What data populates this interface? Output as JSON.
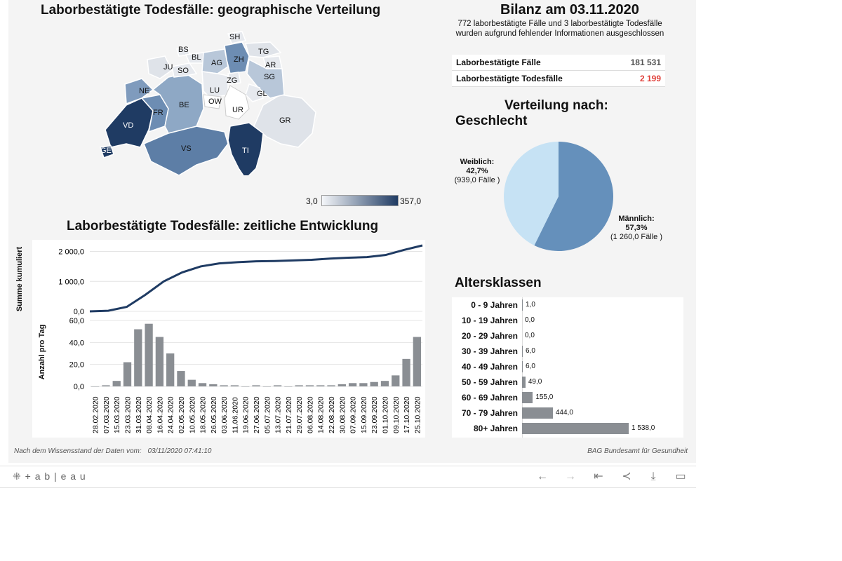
{
  "map": {
    "title": "Laborbestätigte Todesfälle: geographische Verteilung",
    "cantons": [
      "SH",
      "BS",
      "BL",
      "TG",
      "JU",
      "AG",
      "ZH",
      "AR",
      "SO",
      "SG",
      "ZG",
      "NE",
      "LU",
      "GL",
      "OW",
      "FR",
      "BE",
      "UR",
      "GR",
      "VD",
      "VS",
      "TI",
      "GE"
    ],
    "legend_min": "3,0",
    "legend_max": "357,0"
  },
  "summary": {
    "title": "Bilanz am 03.11.2020",
    "note": "772 laborbestätigte Fälle und 3 laborbestätigte Todesfälle wurden aufgrund fehlender Informationen ausgeschlossen",
    "rows": [
      {
        "label": "Laborbestätigte Fälle",
        "value": "181 531"
      },
      {
        "label": "Laborbestätigte Todesfälle",
        "value": "2 199"
      }
    ]
  },
  "sex": {
    "title_line1": "Verteilung nach:",
    "title_line2": "Geschlecht",
    "female_label": "Weiblich:",
    "female_pct": "42,7%",
    "female_cases": "(939,0 Fälle )",
    "male_label": "Männlich:",
    "male_pct": "57,3%",
    "male_cases": "(1 260,0 Fälle )"
  },
  "timeline": {
    "title": "Laborbestätigte Todesfälle: zeitliche Entwicklung",
    "ylabel_top": "Summe kumuliert",
    "ylabel_bottom": "Anzahl pro Tag",
    "top_ticks": [
      "2 000,0",
      "1 000,0",
      "0,0"
    ],
    "bottom_ticks": [
      "60,0",
      "40,0",
      "20,0",
      "0,0"
    ],
    "dates": [
      "28.02.2020",
      "07.03.2020",
      "15.03.2020",
      "23.03.2020",
      "31.03.2020",
      "08.04.2020",
      "16.04.2020",
      "24.04.2020",
      "02.05.2020",
      "10.05.2020",
      "18.05.2020",
      "26.05.2020",
      "03.06.2020",
      "11.06.2020",
      "19.06.2020",
      "27.06.2020",
      "05.07.2020",
      "13.07.2020",
      "21.07.2020",
      "29.07.2020",
      "06.08.2020",
      "14.08.2020",
      "22.08.2020",
      "30.08.2020",
      "07.09.2020",
      "15.09.2020",
      "23.09.2020",
      "01.10.2020",
      "09.10.2020",
      "17.10.2020",
      "25.10.2020"
    ]
  },
  "age": {
    "title": "Altersklassen",
    "rows": [
      {
        "label": "0 - 9 Jahren",
        "value": 1.0,
        "text": "1,0"
      },
      {
        "label": "10 - 19 Jahren",
        "value": 0.0,
        "text": "0,0"
      },
      {
        "label": "20 - 29 Jahren",
        "value": 0.0,
        "text": "0,0"
      },
      {
        "label": "30 - 39 Jahren",
        "value": 6.0,
        "text": "6,0"
      },
      {
        "label": "40 - 49 Jahren",
        "value": 6.0,
        "text": "6,0"
      },
      {
        "label": "50 - 59 Jahren",
        "value": 49.0,
        "text": "49,0"
      },
      {
        "label": "60 - 69 Jahren",
        "value": 155.0,
        "text": "155,0"
      },
      {
        "label": "70 - 79 Jahren",
        "value": 444.0,
        "text": "444,0"
      },
      {
        "label": "80+ Jahren",
        "value": 1538.0,
        "text": "1 538,0"
      }
    ]
  },
  "footer": {
    "left_prefix": "Nach dem Wissensstand der Daten vom:",
    "timestamp": "03/11/2020 07:41:10",
    "right": "BAG Bundesamt für Gesundheit"
  },
  "toolbar": {
    "logo_text": "+ a b | e a u",
    "icons": [
      "undo-icon",
      "redo-icon",
      "revert-icon",
      "share-icon",
      "download-icon",
      "fullscreen-icon"
    ]
  },
  "colors": {
    "map_dark": "#1f3b63",
    "map_light": "#e6e9ee",
    "line": "#1f3b63",
    "bar": "#8a8e93",
    "pie_male": "#6590bb",
    "pie_female": "#c6e2f4",
    "red": "#e0403a"
  },
  "chart_data": [
    {
      "type": "bar",
      "title": "Altersklassen",
      "categories": [
        "0 - 9 Jahren",
        "10 - 19 Jahren",
        "20 - 29 Jahren",
        "30 - 39 Jahren",
        "40 - 49 Jahren",
        "50 - 59 Jahren",
        "60 - 69 Jahren",
        "70 - 79 Jahren",
        "80+ Jahren"
      ],
      "values": [
        1.0,
        0.0,
        0.0,
        6.0,
        6.0,
        49.0,
        155.0,
        444.0,
        1538.0
      ]
    },
    {
      "type": "pie",
      "title": "Geschlecht",
      "categories": [
        "Weiblich",
        "Männlich"
      ],
      "values": [
        42.7,
        57.3
      ]
    },
    {
      "type": "line",
      "title": "Summe kumuliert",
      "x": [
        "28.02.2020",
        "15.03.2020",
        "23.03.2020",
        "31.03.2020",
        "08.04.2020",
        "16.04.2020",
        "24.04.2020",
        "02.05.2020",
        "10.05.2020",
        "26.05.2020",
        "27.06.2020",
        "29.07.2020",
        "30.08.2020",
        "15.09.2020",
        "01.10.2020",
        "09.10.2020",
        "17.10.2020",
        "25.10.2020",
        "03.11.2020"
      ],
      "values": [
        0,
        20,
        150,
        550,
        1000,
        1300,
        1500,
        1600,
        1640,
        1670,
        1680,
        1700,
        1720,
        1760,
        1790,
        1810,
        1880,
        2050,
        2200
      ],
      "ylim": [
        0,
        2200
      ]
    },
    {
      "type": "bar",
      "title": "Anzahl pro Tag",
      "x": [
        "28.02.2020",
        "07.03.2020",
        "15.03.2020",
        "23.03.2020",
        "31.03.2020",
        "08.04.2020",
        "16.04.2020",
        "24.04.2020",
        "02.05.2020",
        "10.05.2020",
        "18.05.2020",
        "26.05.2020",
        "03.06.2020",
        "11.06.2020",
        "19.06.2020",
        "27.06.2020",
        "05.07.2020",
        "13.07.2020",
        "21.07.2020",
        "29.07.2020",
        "06.08.2020",
        "14.08.2020",
        "22.08.2020",
        "30.08.2020",
        "07.09.2020",
        "15.09.2020",
        "23.09.2020",
        "01.10.2020",
        "09.10.2020",
        "17.10.2020",
        "25.10.2020"
      ],
      "values": [
        0,
        1,
        5,
        22,
        52,
        57,
        45,
        30,
        14,
        6,
        3,
        2,
        1,
        1,
        0,
        1,
        0,
        1,
        0,
        1,
        1,
        1,
        1,
        2,
        3,
        3,
        4,
        5,
        10,
        25,
        45
      ],
      "ylim": [
        0,
        60
      ]
    }
  ]
}
